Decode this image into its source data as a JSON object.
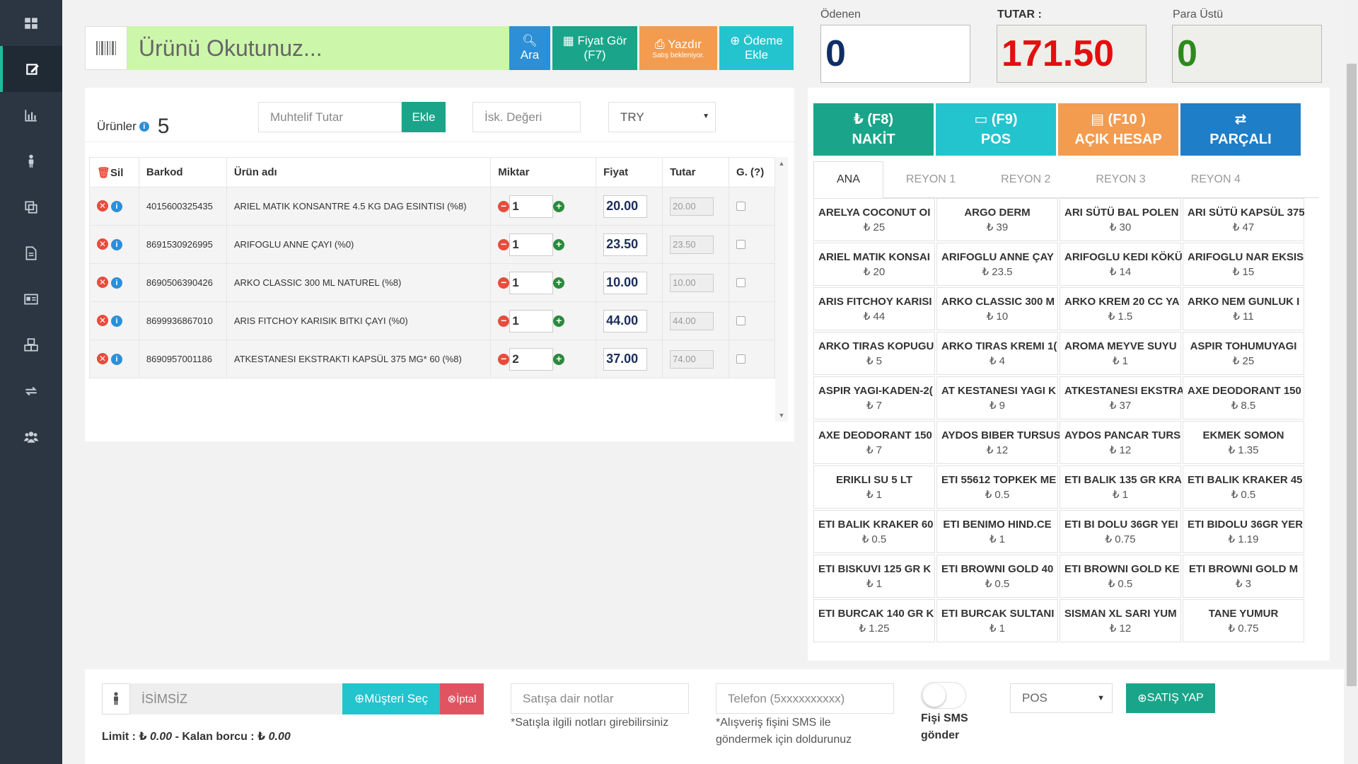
{
  "scan": {
    "placeholder": "Ürünü Okutunuz...",
    "ara_label": "Ara",
    "fiyat_label": "Fiyat Gör",
    "fiyat_shortcut": "(F7)",
    "yazdir_label": "Yazdır",
    "yazdir_sub": "Satış bekleniyor.",
    "odeme_label_1": "Ödeme",
    "odeme_label_2": "Ekle"
  },
  "summary": {
    "odenen_label": "Ödenen",
    "odenen_value": "0",
    "tutar_label": "TUTAR :",
    "tutar_value": "171.50",
    "para_ustu_label": "Para Üstü",
    "para_ustu_value": "0",
    "tutar_color": "#e30f0f",
    "para_ustu_color": "#2c8a1c",
    "odenen_color": "#0f2e66"
  },
  "products": {
    "label": "Ürünler",
    "count": "5",
    "muhtelif_placeholder": "Muhtelif Tutar",
    "ekle_label": "Ekle",
    "isk_placeholder": "İsk. Değeri",
    "currency": "TRY",
    "columns": [
      "Sil",
      "Barkod",
      "Ürün adı",
      "Miktar",
      "Fiyat",
      "Tutar",
      "G. (?)"
    ],
    "rows": [
      {
        "barkod": "4015600325435",
        "name": "ARIEL MATIK KONSANTRE 4.5 KG DAG ESINTISI (%8)",
        "qty": "1",
        "price": "20.00",
        "total": "20.00"
      },
      {
        "barkod": "8691530926995",
        "name": "ARIFOGLU ANNE ÇAYI (%0)",
        "qty": "1",
        "price": "23.50",
        "total": "23.50"
      },
      {
        "barkod": "8690506390426",
        "name": "ARKO CLASSIC 300 ML NATUREL (%8)",
        "qty": "1",
        "price": "10.00",
        "total": "10.00"
      },
      {
        "barkod": "8699936867010",
        "name": "ARIS FITCHOY KARISIK BITKI ÇAYI (%0)",
        "qty": "1",
        "price": "44.00",
        "total": "44.00"
      },
      {
        "barkod": "8690957001186",
        "name": "ATKESTANESI EKSTRAKTI KAPSÜL 375 MG* 60 (%8)",
        "qty": "2",
        "price": "37.00",
        "total": "74.00"
      }
    ]
  },
  "payment": {
    "nakit_1": "₺ (F8)",
    "nakit_2": "NAKİT",
    "pos_1": "(F9)",
    "pos_2": "POS",
    "acik_1": "(F10 )",
    "acik_2": "AÇIK HESAP",
    "parcali": "PARÇALI"
  },
  "tabs": [
    "ANA",
    "REYON 1",
    "REYON 2",
    "REYON 3",
    "REYON 4"
  ],
  "quick_items": [
    {
      "name": "ARELYA COCONUT OI",
      "price": "₺ 25"
    },
    {
      "name": "ARGO DERM",
      "price": "₺ 39"
    },
    {
      "name": "ARI SÜTÜ BAL POLEN",
      "price": "₺ 30"
    },
    {
      "name": "ARI SÜTÜ KAPSÜL 375",
      "price": "₺ 47"
    },
    {
      "name": "ARIEL MATIK KONSAI",
      "price": "₺ 20"
    },
    {
      "name": "ARIFOGLU ANNE ÇAY",
      "price": "₺ 23.5"
    },
    {
      "name": "ARIFOGLU KEDI KÖKÜ",
      "price": "₺ 14"
    },
    {
      "name": "ARIFOGLU NAR EKSIS",
      "price": "₺ 15"
    },
    {
      "name": "ARIS FITCHOY KARISI",
      "price": "₺ 44"
    },
    {
      "name": "ARKO CLASSIC 300 M",
      "price": "₺ 10"
    },
    {
      "name": "ARKO KREM 20 CC YA",
      "price": "₺ 1.5"
    },
    {
      "name": "ARKO NEM GUNLUK I",
      "price": "₺ 11"
    },
    {
      "name": "ARKO TIRAS KOPUGU",
      "price": "₺ 5"
    },
    {
      "name": "ARKO TIRAS KREMI 1(",
      "price": "₺ 4"
    },
    {
      "name": "AROMA MEYVE SUYU",
      "price": "₺ 1"
    },
    {
      "name": "ASPIR TOHUMUYAGI",
      "price": "₺ 25"
    },
    {
      "name": "ASPIR YAGI-KADEN-2(",
      "price": "₺ 7"
    },
    {
      "name": "AT KESTANESI YAGI K",
      "price": "₺ 9"
    },
    {
      "name": "ATKESTANESI EKSTRA",
      "price": "₺ 37"
    },
    {
      "name": "AXE DEODORANT 150",
      "price": "₺ 8.5"
    },
    {
      "name": "AXE DEODORANT 150",
      "price": "₺ 7"
    },
    {
      "name": "AYDOS BIBER TURSUS",
      "price": "₺ 12"
    },
    {
      "name": "AYDOS PANCAR TURS",
      "price": "₺ 12"
    },
    {
      "name": "EKMEK SOMON",
      "price": "₺ 1.35"
    },
    {
      "name": "ERIKLI SU 5 LT",
      "price": "₺ 1"
    },
    {
      "name": "ETI 55612 TOPKEK ME",
      "price": "₺ 0.5"
    },
    {
      "name": "ETI BALIK 135 GR KRA",
      "price": "₺ 1"
    },
    {
      "name": "ETI BALIK KRAKER 45",
      "price": "₺ 0.5"
    },
    {
      "name": "ETI BALIK KRAKER 60",
      "price": "₺ 0.5"
    },
    {
      "name": "ETI BENIMO HIND.CE",
      "price": "₺ 1"
    },
    {
      "name": "ETI BI DOLU 36GR YEI",
      "price": "₺ 0.75"
    },
    {
      "name": "ETI BIDOLU 36GR YER",
      "price": "₺ 1.19"
    },
    {
      "name": "ETI BISKUVI 125 GR K",
      "price": "₺ 1"
    },
    {
      "name": "ETI BROWNI GOLD 40",
      "price": "₺ 0.5"
    },
    {
      "name": "ETI BROWNI GOLD KE",
      "price": "₺ 0.5"
    },
    {
      "name": "ETI BROWNI GOLD M",
      "price": "₺ 3"
    },
    {
      "name": "ETI BURCAK 140 GR K",
      "price": "₺ 1.25"
    },
    {
      "name": "ETI BURCAK SULTANI",
      "price": "₺ 1"
    },
    {
      "name": "SISMAN XL SARI YUM",
      "price": "₺ 12"
    },
    {
      "name": "TANE YUMUR",
      "price": "₺ 0.75"
    }
  ],
  "bottom": {
    "customer_name": "İSİMSİZ",
    "musteri_label": "Müşteri Seç",
    "iptal_label": "İptal",
    "limit_text": "Limit : ₺ ",
    "limit_value": "0.00",
    "kalan_text": " - Kalan borcu : ₺ ",
    "kalan_value": "0.00",
    "notes_placeholder": "Satışa dair notlar",
    "notes_hint": "*Satışla ilgili notları girebilirsiniz",
    "phone_placeholder": "Telefon (5xxxxxxxxxx)",
    "phone_hint_1": "*Alışveriş fişini SMS ile",
    "phone_hint_2": "göndermek için doldurunuz",
    "sms_label_1": "Fişi SMS",
    "sms_label_2": "gönder",
    "pos_select": "POS",
    "satis_label": "SATIŞ YAP"
  },
  "colors": {
    "accent": "#1aa58a",
    "sidebar": "#2b3642",
    "danger": "#e74c3c",
    "info": "#2d8fd6"
  }
}
